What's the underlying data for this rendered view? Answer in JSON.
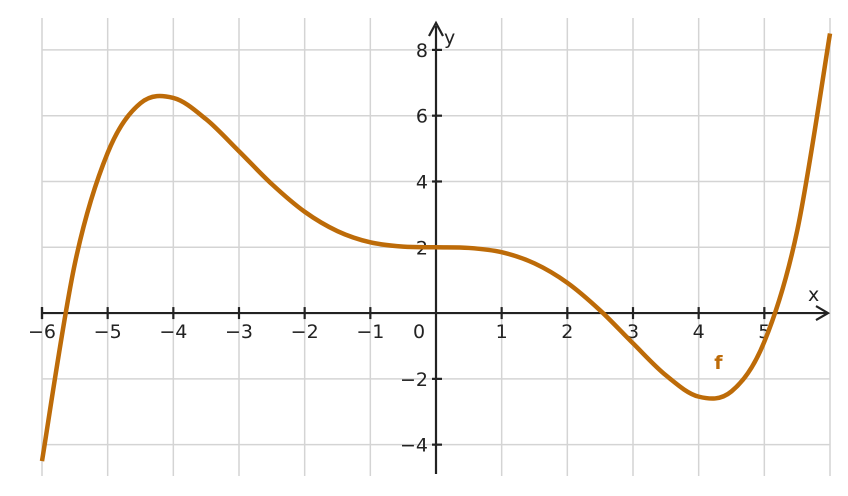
{
  "chart_data": {
    "type": "line",
    "x_label": "x",
    "y_label": "y",
    "annotation": "f",
    "x": [
      -6,
      -5.5,
      -5,
      -4.5,
      -4,
      -3.5,
      -3,
      -2.5,
      -2,
      -1.5,
      -1,
      -0.5,
      0,
      0.5,
      1,
      1.5,
      2,
      2.5,
      3,
      3.5,
      4,
      4.5,
      5,
      5.5,
      6
    ],
    "series": [
      {
        "name": "f",
        "color": "#bd6b08",
        "values": [
          -4.5,
          1.5,
          4.87,
          6.38,
          6.54,
          5.89,
          4.92,
          3.92,
          3.08,
          2.49,
          2.15,
          2.02,
          2,
          1.98,
          1.85,
          1.51,
          0.92,
          0.08,
          -0.92,
          -1.89,
          -2.54,
          -2.38,
          -0.87,
          2.5,
          8.5
        ]
      }
    ],
    "xlim": [
      -6,
      6
    ],
    "ylim": [
      -5.5,
      9
    ],
    "xticks": [
      {
        "value": -6,
        "label": "−6"
      },
      {
        "value": -5,
        "label": "−5"
      },
      {
        "value": -4,
        "label": "−4"
      },
      {
        "value": -3,
        "label": "−3"
      },
      {
        "value": -2,
        "label": "−2"
      },
      {
        "value": -1,
        "label": "−1"
      },
      0,
      1,
      2,
      3,
      4,
      5
    ],
    "yticks": [
      {
        "value": -4,
        "label": "−4"
      },
      {
        "value": -2,
        "label": "−2"
      },
      2,
      4,
      6,
      8
    ],
    "grid": true
  }
}
